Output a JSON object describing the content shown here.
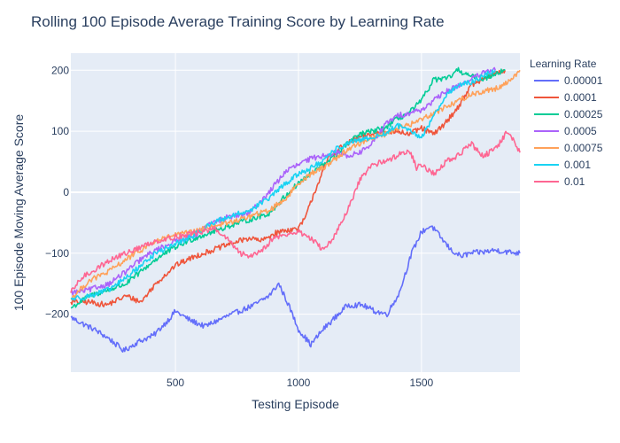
{
  "chart_data": {
    "type": "line",
    "title": "Rolling 100 Episode Average Training Score by Learning Rate",
    "xlabel": "Testing Episode",
    "ylabel": "100 Episode Moving Average Score",
    "xlim": [
      75,
      1900
    ],
    "ylim": [
      -295,
      228
    ],
    "xticks": [
      500,
      1000,
      1500
    ],
    "yticks": [
      -200,
      -100,
      0,
      100,
      200
    ],
    "ytick_labels": [
      "−200",
      "−100",
      "0",
      "100",
      "200"
    ],
    "grid": true,
    "legend": {
      "title": "Learning Rate",
      "placement": "right"
    },
    "series": [
      {
        "name": "0.00001",
        "color": "#636efa",
        "x": [
          75,
          120,
          170,
          230,
          290,
          350,
          410,
          470,
          500,
          560,
          620,
          700,
          760,
          820,
          880,
          920,
          960,
          1000,
          1050,
          1100,
          1150,
          1200,
          1260,
          1310,
          1360,
          1410,
          1460,
          1500,
          1540,
          1580,
          1620,
          1660,
          1700,
          1750,
          1800,
          1850,
          1900
        ],
        "y": [
          -205,
          -215,
          -225,
          -240,
          -260,
          -245,
          -235,
          -210,
          -195,
          -210,
          -220,
          -205,
          -195,
          -185,
          -170,
          -150,
          -185,
          -225,
          -250,
          -225,
          -205,
          -185,
          -185,
          -195,
          -200,
          -165,
          -100,
          -65,
          -55,
          -75,
          -95,
          -105,
          -100,
          -98,
          -95,
          -98,
          -100
        ]
      },
      {
        "name": "0.0001",
        "color": "#ef553b",
        "x": [
          75,
          150,
          220,
          300,
          360,
          420,
          500,
          580,
          650,
          720,
          800,
          850,
          900,
          950,
          1000,
          1030,
          1060,
          1080,
          1120,
          1160,
          1200,
          1250,
          1300,
          1350,
          1400,
          1450,
          1500,
          1550,
          1600,
          1650,
          1700,
          1750,
          1800,
          1840
        ],
        "y": [
          -180,
          -180,
          -185,
          -170,
          -180,
          -150,
          -120,
          -105,
          -95,
          -85,
          -75,
          -80,
          -68,
          -62,
          -60,
          -40,
          -5,
          15,
          55,
          70,
          80,
          90,
          95,
          100,
          100,
          95,
          105,
          95,
          115,
          140,
          175,
          185,
          195,
          200
        ]
      },
      {
        "name": "0.00025",
        "color": "#00cc96",
        "x": [
          75,
          150,
          230,
          300,
          360,
          420,
          500,
          580,
          650,
          720,
          800,
          880,
          950,
          1000,
          1050,
          1100,
          1150,
          1200,
          1250,
          1300,
          1350,
          1400,
          1450,
          1500,
          1550,
          1600,
          1650,
          1700,
          1750,
          1800,
          1840
        ],
        "y": [
          -190,
          -170,
          -160,
          -150,
          -130,
          -110,
          -90,
          -75,
          -65,
          -55,
          -45,
          -35,
          -5,
          15,
          30,
          45,
          60,
          80,
          95,
          100,
          105,
          120,
          130,
          150,
          185,
          185,
          200,
          190,
          185,
          195,
          200
        ]
      },
      {
        "name": "0.0005",
        "color": "#ab63fa",
        "x": [
          75,
          150,
          230,
          300,
          360,
          420,
          500,
          580,
          650,
          720,
          800,
          880,
          950,
          1000,
          1050,
          1100,
          1150,
          1200,
          1250,
          1300,
          1350,
          1400,
          1450,
          1500,
          1550,
          1600,
          1650,
          1700,
          1750,
          1800
        ],
        "y": [
          -165,
          -160,
          -150,
          -130,
          -110,
          -95,
          -80,
          -70,
          -50,
          -40,
          -35,
          0,
          35,
          45,
          55,
          60,
          65,
          60,
          65,
          80,
          110,
          125,
          130,
          135,
          150,
          165,
          175,
          185,
          195,
          200
        ]
      },
      {
        "name": "0.00075",
        "color": "#ffa15a",
        "x": [
          75,
          150,
          230,
          300,
          360,
          420,
          500,
          580,
          650,
          720,
          800,
          880,
          950,
          1000,
          1050,
          1100,
          1150,
          1200,
          1250,
          1300,
          1350,
          1400,
          1450,
          1500,
          1550,
          1600,
          1650,
          1700,
          1750,
          1800,
          1850,
          1900
        ],
        "y": [
          -175,
          -145,
          -130,
          -110,
          -95,
          -80,
          -70,
          -65,
          -55,
          -50,
          -40,
          -30,
          -10,
          15,
          30,
          40,
          55,
          70,
          80,
          90,
          95,
          105,
          110,
          120,
          130,
          140,
          150,
          160,
          165,
          170,
          180,
          200
        ]
      },
      {
        "name": "0.001",
        "color": "#19d3f3",
        "x": [
          75,
          150,
          230,
          300,
          360,
          420,
          500,
          580,
          650,
          720,
          800,
          880,
          950,
          1000,
          1050,
          1100,
          1150,
          1200,
          1250,
          1300,
          1350,
          1400,
          1450,
          1500,
          1550,
          1600,
          1650,
          1700,
          1750,
          1800
        ],
        "y": [
          -175,
          -170,
          -160,
          -140,
          -120,
          -100,
          -85,
          -70,
          -50,
          -40,
          -30,
          -10,
          15,
          30,
          40,
          50,
          70,
          80,
          85,
          90,
          95,
          110,
          100,
          90,
          125,
          160,
          175,
          180,
          190,
          200
        ]
      },
      {
        "name": "0.01",
        "color": "#fe6692",
        "x": [
          75,
          120,
          180,
          240,
          300,
          360,
          420,
          480,
          540,
          600,
          660,
          720,
          760,
          800,
          850,
          900,
          950,
          1000,
          1050,
          1100,
          1150,
          1200,
          1250,
          1300,
          1350,
          1400,
          1450,
          1480,
          1500,
          1550,
          1600,
          1650,
          1700,
          1750,
          1800,
          1850,
          1880,
          1900
        ],
        "y": [
          -165,
          -140,
          -125,
          -110,
          -100,
          -90,
          -80,
          -75,
          -70,
          -65,
          -60,
          -80,
          -100,
          -105,
          -95,
          -75,
          -70,
          -65,
          -75,
          -95,
          -70,
          -30,
          20,
          45,
          50,
          60,
          70,
          40,
          45,
          30,
          50,
          60,
          80,
          60,
          70,
          100,
          80,
          65
        ]
      }
    ]
  }
}
